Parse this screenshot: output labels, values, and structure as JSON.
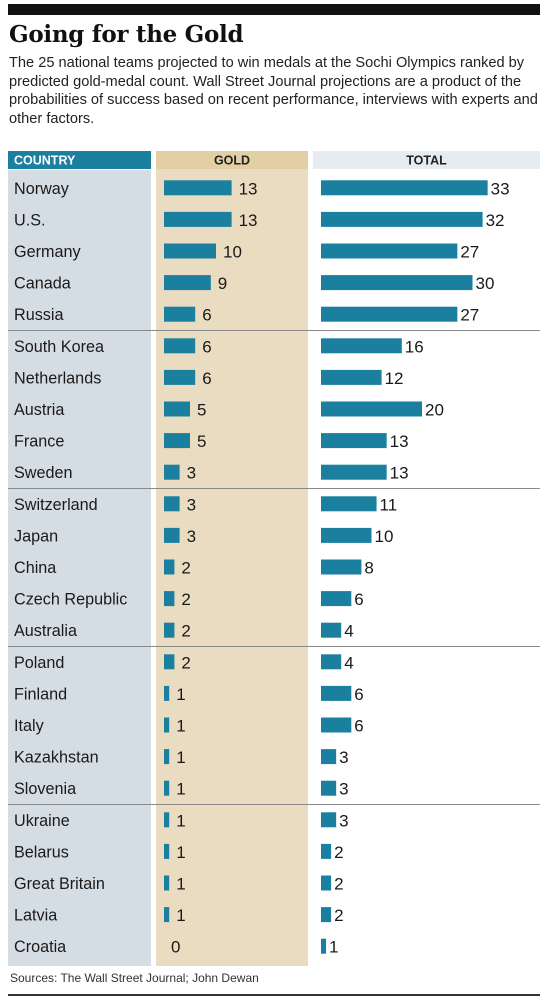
{
  "title": "Going for the Gold",
  "subtitle": "The 25 national teams projected to win medals at the Sochi Olympics ranked by predicted gold-medal count. Wall Street Journal projections are a product of the probabilities of success based on recent performance, interviews with experts and other factors.",
  "source": "Sources: The Wall Street Journal; John Dewan",
  "colors": {
    "bar": "#1b7fa0",
    "header_country": "#1b7fa0",
    "header_gold": "#e2cfa4",
    "header_total": "#e6ecf0",
    "country_column": "#d5dde4",
    "gold_column": "#e9dcc1",
    "total_column": "#ffffff",
    "divider": "#8a8a8a"
  },
  "chart_data": {
    "type": "bar",
    "columns": [
      "COUNTRY",
      "GOLD",
      "TOTAL"
    ],
    "categories": [
      "Norway",
      "U.S.",
      "Germany",
      "Canada",
      "Russia",
      "South Korea",
      "Netherlands",
      "Austria",
      "France",
      "Sweden",
      "Switzerland",
      "Japan",
      "China",
      "Czech Republic",
      "Australia",
      "Poland",
      "Finland",
      "Italy",
      "Kazakhstan",
      "Slovenia",
      "Ukraine",
      "Belarus",
      "Great Britain",
      "Latvia",
      "Croatia"
    ],
    "series": [
      {
        "name": "GOLD",
        "values": [
          13,
          13,
          10,
          9,
          6,
          6,
          6,
          5,
          5,
          3,
          3,
          3,
          2,
          2,
          2,
          2,
          1,
          1,
          1,
          1,
          1,
          1,
          1,
          1,
          0
        ]
      },
      {
        "name": "TOTAL",
        "values": [
          33,
          32,
          27,
          30,
          27,
          16,
          12,
          20,
          13,
          13,
          11,
          10,
          8,
          6,
          4,
          4,
          6,
          6,
          3,
          3,
          3,
          2,
          2,
          2,
          1
        ]
      }
    ],
    "group_size": 5
  }
}
